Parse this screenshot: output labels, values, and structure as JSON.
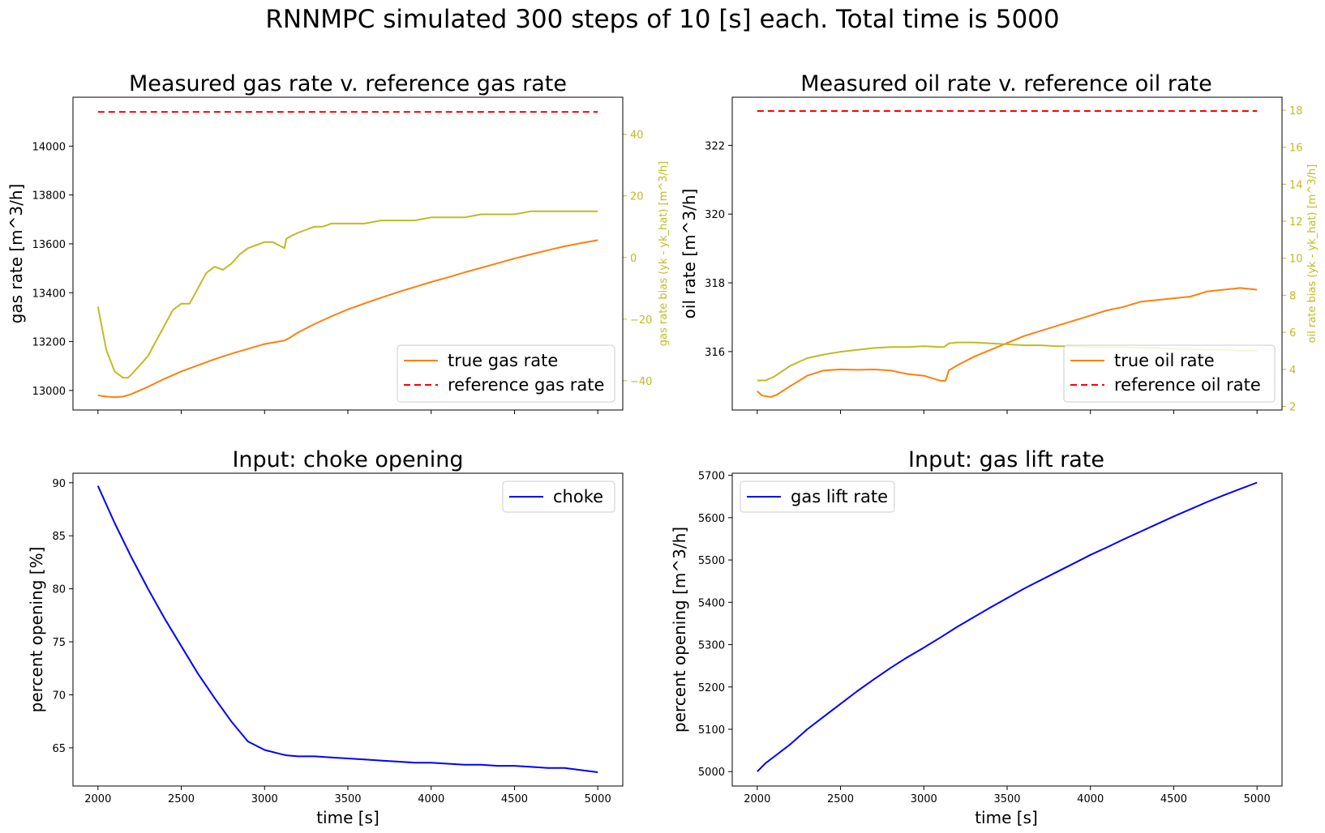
{
  "figure": {
    "title": "RNNMPC simulated 300 steps of 10 [s] each. Total time is 5000"
  },
  "chart_data": [
    {
      "id": "gas",
      "type": "line",
      "title": "Measured gas rate v. reference gas rate",
      "xlabel": "",
      "ylabel": "gas rate [m^3/h]",
      "y2label": "gas rate bias (yk - yk_hat) [m^3/h]",
      "xlim": [
        1850,
        5150
      ],
      "ylim": [
        12920,
        14200
      ],
      "y2lim": [
        -49.5,
        52
      ],
      "xticks": [
        2000,
        2500,
        3000,
        3500,
        4000,
        4500,
        5000
      ],
      "show_xticklabels": false,
      "yticks": [
        13000,
        13200,
        13400,
        13600,
        13800,
        14000
      ],
      "y2ticks": [
        -40,
        -20,
        0,
        20,
        40
      ],
      "y2ticklabels": [
        "−40",
        "−20",
        "0",
        "20",
        "40"
      ],
      "legend_placement": "lower right",
      "series": [
        {
          "name": "true gas rate",
          "axis": "left",
          "color": "#ff7f0e",
          "style": "solid",
          "x": [
            2000,
            2050,
            2100,
            2150,
            2200,
            2300,
            2400,
            2500,
            2600,
            2700,
            2800,
            2900,
            3000,
            3120,
            3150,
            3200,
            3300,
            3400,
            3500,
            3600,
            3700,
            3800,
            3900,
            4000,
            4100,
            4200,
            4300,
            4400,
            4500,
            4600,
            4700,
            4800,
            4900,
            5000
          ],
          "y": [
            12980,
            12975,
            12972,
            12975,
            12985,
            13015,
            13048,
            13078,
            13103,
            13128,
            13150,
            13170,
            13190,
            13205,
            13215,
            13237,
            13272,
            13303,
            13332,
            13356,
            13380,
            13402,
            13423,
            13444,
            13463,
            13483,
            13502,
            13521,
            13540,
            13557,
            13574,
            13590,
            13603,
            13615
          ]
        },
        {
          "name": "reference gas rate",
          "axis": "left",
          "color": "#ff0000",
          "style": "dashed",
          "x": [
            2000,
            5000
          ],
          "y": [
            14140,
            14140
          ]
        },
        {
          "name": "",
          "axis": "right",
          "color": "#bcbd22",
          "style": "solid",
          "legend": false,
          "x": [
            2000,
            2050,
            2100,
            2150,
            2180,
            2200,
            2250,
            2300,
            2350,
            2400,
            2450,
            2500,
            2550,
            2600,
            2650,
            2700,
            2750,
            2800,
            2850,
            2900,
            2950,
            3000,
            3050,
            3120,
            3130,
            3160,
            3200,
            3250,
            3300,
            3350,
            3400,
            3450,
            3500,
            3550,
            3600,
            3700,
            3800,
            3900,
            4000,
            4100,
            4200,
            4300,
            4400,
            4500,
            4600,
            4700,
            4800,
            4900,
            5000
          ],
          "y": [
            -16,
            -30,
            -37,
            -39,
            -39,
            -38,
            -35,
            -32,
            -27,
            -22,
            -17,
            -15,
            -15,
            -10,
            -5,
            -3,
            -4,
            -2,
            1,
            3,
            4,
            5,
            5,
            3,
            6,
            7,
            8,
            9,
            10,
            10,
            11,
            11,
            11,
            11,
            11,
            12,
            12,
            12,
            13,
            13,
            13,
            14,
            14,
            14,
            15,
            15,
            15,
            15,
            15
          ]
        }
      ]
    },
    {
      "id": "oil",
      "type": "line",
      "title": "Measured oil rate v. reference oil rate",
      "xlabel": "",
      "ylabel": "oil rate [m^3/h]",
      "y2label": "oil rate bias (yk - yk_hat) [m^3/h]",
      "xlim": [
        1850,
        5150
      ],
      "ylim": [
        314.3,
        323.4
      ],
      "y2lim": [
        1.8,
        18.7
      ],
      "xticks": [
        2000,
        2500,
        3000,
        3500,
        4000,
        4500,
        5000
      ],
      "show_xticklabels": false,
      "yticks": [
        316,
        318,
        320,
        322
      ],
      "y2ticks": [
        2,
        4,
        6,
        8,
        10,
        12,
        14,
        16,
        18
      ],
      "legend_placement": "lower right",
      "series": [
        {
          "name": "true oil rate",
          "axis": "left",
          "color": "#ff7f0e",
          "style": "solid",
          "x": [
            2000,
            2030,
            2080,
            2120,
            2200,
            2300,
            2400,
            2500,
            2600,
            2700,
            2800,
            2900,
            3000,
            3100,
            3130,
            3150,
            3200,
            3300,
            3400,
            3500,
            3600,
            3700,
            3800,
            3900,
            4000,
            4100,
            4200,
            4300,
            4400,
            4500,
            4600,
            4700,
            4800,
            4900,
            5000
          ],
          "y": [
            314.85,
            314.72,
            314.68,
            314.75,
            315.0,
            315.3,
            315.45,
            315.48,
            315.47,
            315.48,
            315.45,
            315.35,
            315.3,
            315.15,
            315.15,
            315.45,
            315.6,
            315.85,
            316.05,
            316.25,
            316.45,
            316.6,
            316.75,
            316.9,
            317.05,
            317.2,
            317.3,
            317.45,
            317.5,
            317.55,
            317.6,
            317.75,
            317.8,
            317.85,
            317.8
          ]
        },
        {
          "name": "reference oil rate",
          "axis": "left",
          "color": "#ff0000",
          "style": "dashed",
          "x": [
            2000,
            5000
          ],
          "y": [
            323.0,
            323.0
          ]
        },
        {
          "name": "",
          "axis": "right",
          "color": "#bcbd22",
          "style": "solid",
          "legend": false,
          "x": [
            2000,
            2050,
            2100,
            2200,
            2300,
            2400,
            2500,
            2600,
            2700,
            2800,
            2900,
            3000,
            3100,
            3120,
            3150,
            3200,
            3300,
            3400,
            3500,
            3600,
            3700,
            3800,
            3900,
            4000,
            4100,
            4200,
            4300,
            4400,
            4500,
            4600,
            4700,
            4800,
            4900,
            5000
          ],
          "y": [
            3.4,
            3.4,
            3.6,
            4.2,
            4.6,
            4.8,
            4.95,
            5.05,
            5.15,
            5.2,
            5.2,
            5.25,
            5.2,
            5.2,
            5.4,
            5.45,
            5.45,
            5.4,
            5.35,
            5.3,
            5.3,
            5.25,
            5.25,
            5.2,
            5.2,
            5.2,
            5.15,
            5.15,
            5.1,
            5.1,
            5.05,
            5.05,
            5.0,
            5.0
          ]
        }
      ]
    },
    {
      "id": "choke",
      "type": "line",
      "title": "Input: choke opening",
      "xlabel": "time [s]",
      "ylabel": "percent opening [%]",
      "xlim": [
        1850,
        5150
      ],
      "ylim": [
        61.4,
        90.9
      ],
      "xticks": [
        2000,
        2500,
        3000,
        3500,
        4000,
        4500,
        5000
      ],
      "show_xticklabels": true,
      "yticks": [
        65,
        70,
        75,
        80,
        85,
        90
      ],
      "legend_placement": "upper right",
      "series": [
        {
          "name": "choke",
          "axis": "left",
          "color": "#0000ff",
          "style": "solid",
          "x": [
            2000,
            2100,
            2200,
            2300,
            2400,
            2500,
            2600,
            2700,
            2800,
            2900,
            3000,
            3100,
            3130,
            3200,
            3300,
            3400,
            3500,
            3600,
            3700,
            3800,
            3900,
            4000,
            4100,
            4200,
            4300,
            4400,
            4500,
            4600,
            4700,
            4800,
            4900,
            5000
          ],
          "y": [
            89.7,
            86.2,
            83.0,
            80.0,
            77.2,
            74.6,
            72.0,
            69.7,
            67.5,
            65.6,
            64.8,
            64.4,
            64.3,
            64.2,
            64.2,
            64.1,
            64.0,
            63.9,
            63.8,
            63.7,
            63.6,
            63.6,
            63.5,
            63.4,
            63.4,
            63.3,
            63.3,
            63.2,
            63.1,
            63.1,
            62.9,
            62.7
          ]
        }
      ]
    },
    {
      "id": "gaslift",
      "type": "line",
      "title": "Input: gas lift rate",
      "xlabel": "time [s]",
      "ylabel": "percent opening [m^3/h]",
      "xlim": [
        1850,
        5150
      ],
      "ylim": [
        4966,
        5705
      ],
      "xticks": [
        2000,
        2500,
        3000,
        3500,
        4000,
        4500,
        5000
      ],
      "show_xticklabels": true,
      "yticks": [
        5000,
        5100,
        5200,
        5300,
        5400,
        5500,
        5600,
        5700
      ],
      "legend_placement": "upper left",
      "series": [
        {
          "name": "gas lift rate",
          "axis": "left",
          "color": "#0000ff",
          "style": "solid",
          "x": [
            2000,
            2050,
            2100,
            2200,
            2300,
            2400,
            2500,
            2600,
            2700,
            2800,
            2900,
            3000,
            3100,
            3200,
            3300,
            3400,
            3500,
            3600,
            3700,
            3800,
            3900,
            4000,
            4100,
            4200,
            4300,
            4400,
            4500,
            4600,
            4700,
            4800,
            4900,
            5000
          ],
          "y": [
            5000,
            5020,
            5035,
            5065,
            5100,
            5130,
            5160,
            5190,
            5218,
            5245,
            5270,
            5293,
            5317,
            5342,
            5365,
            5388,
            5410,
            5432,
            5452,
            5472,
            5492,
            5512,
            5530,
            5549,
            5567,
            5585,
            5603,
            5620,
            5637,
            5653,
            5668,
            5683
          ]
        }
      ]
    }
  ]
}
